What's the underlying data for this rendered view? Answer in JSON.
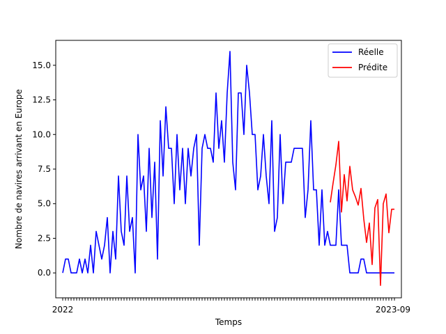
{
  "chart_data": {
    "type": "line",
    "title": "",
    "xlabel": "Temps",
    "ylabel": "Nombre de navires arrivant en Europe",
    "ylim": [
      -1.8,
      16.8
    ],
    "yticks": [
      0.0,
      2.5,
      5.0,
      7.5,
      10.0,
      12.5,
      15.0
    ],
    "ytick_labels": [
      "0.0",
      "2.5",
      "5.0",
      "7.5",
      "10.0",
      "12.5",
      "15.0"
    ],
    "x_tick_label_first": "2022",
    "x_tick_label_last": "2023-09",
    "legend_position": "top-right",
    "series": [
      {
        "name": "Réelle",
        "color": "#0000ff",
        "x": [
          0,
          1,
          2,
          3,
          4,
          5,
          6,
          7,
          8,
          9,
          10,
          11,
          12,
          13,
          14,
          15,
          16,
          17,
          18,
          19,
          20,
          21,
          22,
          23,
          24,
          25,
          26,
          27,
          28,
          29,
          30,
          31,
          32,
          33,
          34,
          35,
          36,
          37,
          38,
          39,
          40,
          41,
          42,
          43,
          44,
          45,
          46,
          47,
          48,
          49,
          50,
          51,
          52,
          53,
          54,
          55,
          56,
          57,
          58,
          59,
          60,
          61,
          62,
          63,
          64,
          65,
          66,
          67,
          68,
          69,
          70,
          71,
          72,
          73,
          74,
          75,
          76,
          77,
          78,
          79
        ],
        "values": [
          0,
          1,
          1,
          0,
          0,
          0,
          1,
          0,
          1,
          0,
          2,
          0,
          3,
          2,
          1,
          2,
          4,
          0,
          3,
          1,
          7,
          3,
          2,
          7,
          3,
          4,
          0,
          10,
          6,
          7,
          3,
          9,
          4,
          8,
          1,
          11,
          7,
          12,
          9,
          9,
          5,
          10,
          6,
          9,
          5,
          9,
          7,
          9,
          10,
          2,
          9,
          10,
          9,
          9,
          8,
          13,
          9,
          11,
          8,
          13,
          16,
          8,
          6,
          13,
          13,
          10,
          15,
          13,
          10,
          10,
          6,
          7,
          10,
          7,
          5,
          11,
          3,
          4,
          10,
          5
        ],
        "x2": [
          79,
          80,
          81,
          82,
          83,
          84,
          85,
          86,
          87,
          88,
          89,
          90,
          91,
          92,
          93,
          94,
          95,
          96,
          97,
          98,
          99,
          100,
          101,
          102,
          103,
          104,
          105,
          106,
          107,
          108,
          109,
          110,
          111,
          112,
          113,
          114,
          115,
          116,
          117,
          118,
          119
        ],
        "values2": [
          5,
          8,
          8,
          8,
          9,
          9,
          9,
          9,
          4,
          6,
          11,
          6,
          6,
          2,
          6,
          2,
          3,
          2,
          2,
          2,
          6,
          2,
          2,
          2,
          0,
          0,
          0,
          0,
          1,
          1,
          0,
          0,
          0,
          0,
          0,
          0,
          0,
          0,
          0,
          0,
          0
        ]
      },
      {
        "name": "Prédite",
        "color": "#ff0000",
        "x": [
          96,
          97,
          98,
          99,
          100,
          101,
          102,
          103,
          104,
          105,
          106,
          107,
          108,
          109,
          110,
          111,
          112,
          113,
          114,
          115,
          116,
          117,
          118,
          119
        ],
        "values": [
          5.1,
          6.5,
          7.8,
          9.5,
          4.4,
          7.1,
          5.2,
          7.7,
          6.0,
          5.5,
          4.9,
          6.1,
          3.9,
          2.2,
          3.6,
          0.6,
          4.7,
          5.3,
          -0.9,
          5.0,
          5.7,
          2.9,
          4.6,
          4.6
        ]
      }
    ]
  }
}
